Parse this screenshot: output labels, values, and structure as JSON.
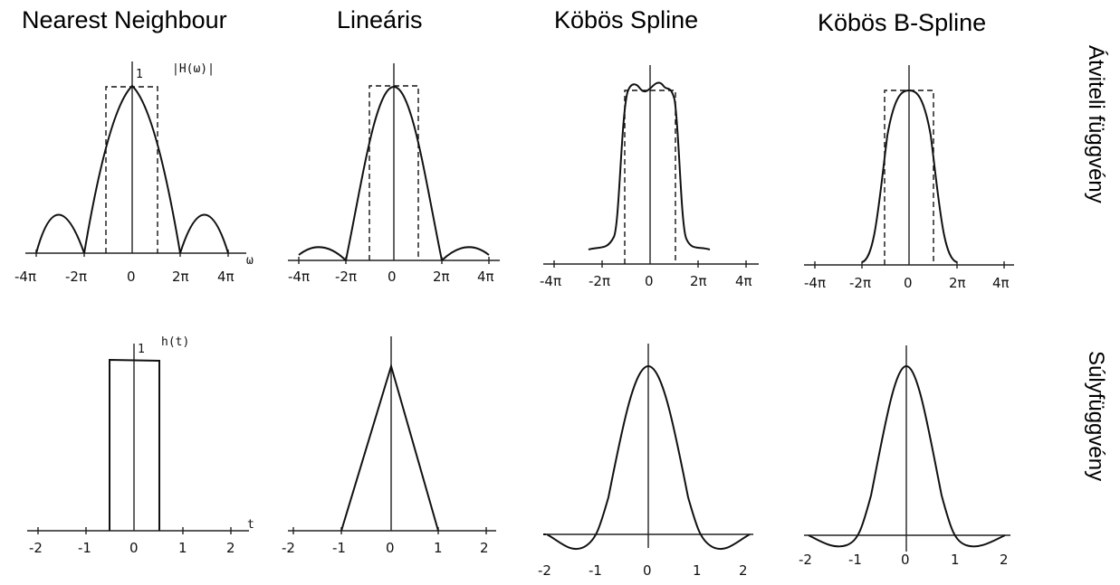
{
  "columns": [
    {
      "title": "Nearest Neighbour"
    },
    {
      "title": "Lineáris"
    },
    {
      "title": "Köbös Spline"
    },
    {
      "title": "Köbös B-Spline"
    }
  ],
  "row_labels": {
    "transfer": "Átviteli függvény",
    "weight": "Súlyfüggvény"
  },
  "transfer_ticks": [
    "-4π",
    "-2π",
    "0",
    "2π",
    "4π"
  ],
  "weight_ticks": [
    "-2",
    "-1",
    "0",
    "1",
    "2"
  ],
  "annotations": {
    "H_label": "|H(ω)|",
    "omega": "ω",
    "h_label": "h(t)",
    "t": "t",
    "one": "1"
  }
}
